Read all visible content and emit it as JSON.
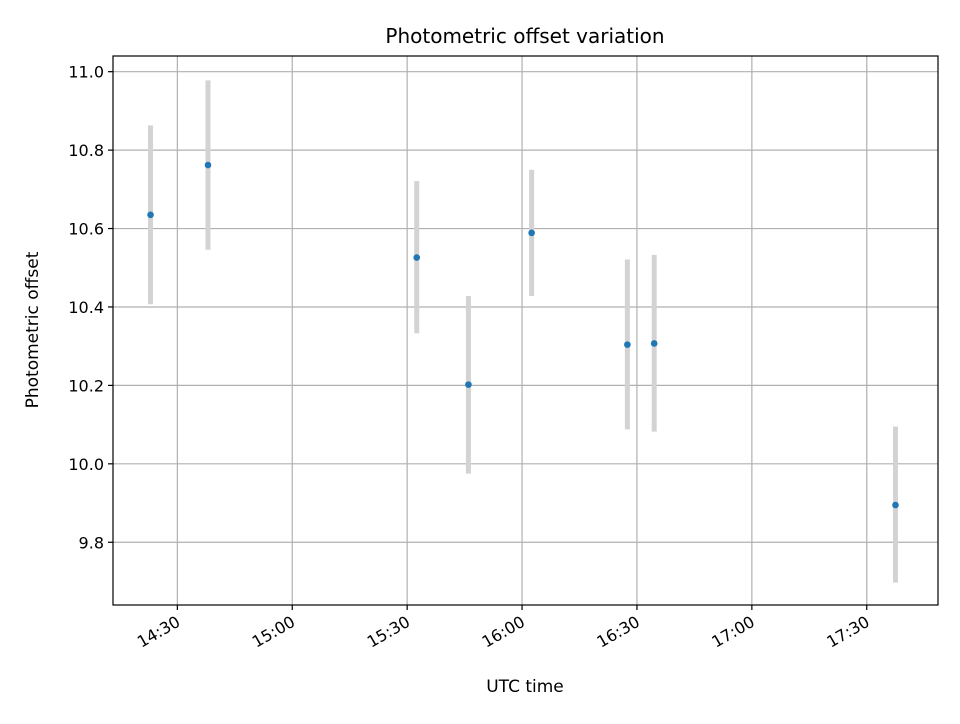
{
  "chart_data": {
    "type": "scatter",
    "title": "Photometric offset variation",
    "xlabel": "UTC time",
    "ylabel": "Photometric offset",
    "x_unit": "minutes since 00:00 UTC",
    "xlim": [
      853.2,
      1068.6
    ],
    "ylim": [
      9.64,
      11.04
    ],
    "grid": true,
    "x_ticks": [
      {
        "value": 870,
        "label": "14:30"
      },
      {
        "value": 900,
        "label": "15:00"
      },
      {
        "value": 930,
        "label": "15:30"
      },
      {
        "value": 960,
        "label": "16:00"
      },
      {
        "value": 990,
        "label": "16:30"
      },
      {
        "value": 1020,
        "label": "17:00"
      },
      {
        "value": 1050,
        "label": "17:30"
      }
    ],
    "y_ticks": [
      {
        "value": 9.8,
        "label": "9.8"
      },
      {
        "value": 10.0,
        "label": "10.0"
      },
      {
        "value": 10.2,
        "label": "10.2"
      },
      {
        "value": 10.4,
        "label": "10.4"
      },
      {
        "value": 10.6,
        "label": "10.6"
      },
      {
        "value": 10.8,
        "label": "10.8"
      },
      {
        "value": 11.0,
        "label": "11.0"
      }
    ],
    "series": [
      {
        "name": "Photometric offset",
        "marker_color": "#1f77b4",
        "errorbar_color": "#d3d3d3",
        "points": [
          {
            "x": 863,
            "y": 10.635,
            "ylow": 10.407,
            "yhigh": 10.863
          },
          {
            "x": 878,
            "y": 10.762,
            "ylow": 10.546,
            "yhigh": 10.978
          },
          {
            "x": 932.5,
            "y": 10.526,
            "ylow": 10.333,
            "yhigh": 10.721
          },
          {
            "x": 946,
            "y": 10.202,
            "ylow": 9.975,
            "yhigh": 10.428
          },
          {
            "x": 962.5,
            "y": 10.589,
            "ylow": 10.428,
            "yhigh": 10.75
          },
          {
            "x": 987.5,
            "y": 10.304,
            "ylow": 10.088,
            "yhigh": 10.521
          },
          {
            "x": 994.5,
            "y": 10.307,
            "ylow": 10.082,
            "yhigh": 10.533
          },
          {
            "x": 1057.5,
            "y": 9.895,
            "ylow": 9.697,
            "yhigh": 10.095
          }
        ]
      }
    ]
  }
}
